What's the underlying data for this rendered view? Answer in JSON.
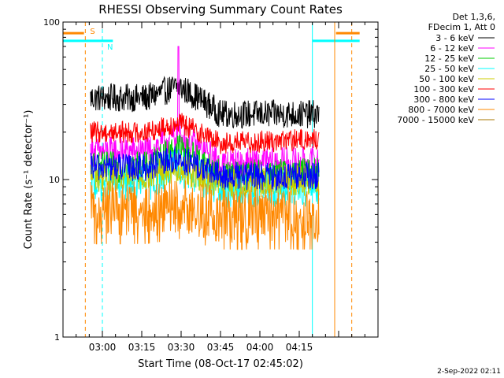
{
  "chart_data": {
    "type": "line",
    "title": "RHESSI Observing Summary Count Rates",
    "xlabel": "Start Time (08-Oct-17 02:45:02)",
    "ylabel": "Count Rate (s⁻¹ detector⁻¹)",
    "yscale": "log",
    "ylim": [
      1,
      100
    ],
    "yticks": [
      "1",
      "10",
      "100"
    ],
    "xlim_minutes": [
      0,
      120
    ],
    "xticks": [
      {
        "label": "03:00",
        "minute": 15
      },
      {
        "label": "03:15",
        "minute": 30
      },
      {
        "label": "03:30",
        "minute": 45
      },
      {
        "label": "03:45",
        "minute": 60
      },
      {
        "label": "04:00",
        "minute": 75
      },
      {
        "label": "04:15",
        "minute": 90
      }
    ],
    "legend_header": [
      "Det 1,3,6,",
      "FDecim 1, Att 0"
    ],
    "legend_placement": "top-right outside",
    "data_interval_minutes": [
      10.5,
      97.5
    ],
    "peak_minute": 44,
    "series": [
      {
        "name": "3 - 6 keV",
        "color": "#000000",
        "pre": 33,
        "peak": 39,
        "trough": 26,
        "post": 26,
        "spread": 0.045
      },
      {
        "name": "6 - 12 keV",
        "color": "#ff00ff",
        "pre": 15,
        "peak": 19,
        "trough": 12.5,
        "post": 13,
        "spread": 0.05,
        "spike": 70
      },
      {
        "name": "12 - 25 keV",
        "color": "#00cc00",
        "pre": 12,
        "peak": 16,
        "trough": 10.5,
        "post": 11,
        "spread": 0.05
      },
      {
        "name": "25 - 50 keV",
        "color": "#00ffff",
        "pre": 9.5,
        "peak": 12,
        "trough": 8.5,
        "post": 9,
        "spread": 0.06
      },
      {
        "name": "50 - 100 keV",
        "color": "#cccc00",
        "pre": 10.5,
        "peak": 12,
        "trough": 9.5,
        "post": 10,
        "spread": 0.05
      },
      {
        "name": "100 - 300 keV",
        "color": "#ff0000",
        "pre": 20,
        "peak": 23,
        "trough": 17,
        "post": 18,
        "spread": 0.035
      },
      {
        "name": "300 - 800 keV",
        "color": "#0000ff",
        "pre": 12,
        "peak": 13.5,
        "trough": 10.5,
        "post": 10.5,
        "spread": 0.045
      },
      {
        "name": "800 - 7000 keV",
        "color": "#ff8800",
        "pre": 6.5,
        "peak": 7,
        "trough": 6,
        "post": 6,
        "spread": 0.09
      },
      {
        "name": "7000 - 15000 keV",
        "color": "#aa7700",
        "pre": 0,
        "peak": 0,
        "trough": 0,
        "post": 0,
        "spread": 0
      }
    ],
    "markers": [
      {
        "label": "S",
        "color": "#ff8800",
        "style": "dashed",
        "minute": 8.5
      },
      {
        "label": "N",
        "color": "#00ffff",
        "style": "dashed",
        "minute": 15
      }
    ],
    "state_lines": [
      {
        "color": "#00ffff",
        "style": "solid",
        "minute": 95
      },
      {
        "color": "#ff8800",
        "style": "solid",
        "minute": 103.5
      },
      {
        "color": "#ff8800",
        "style": "dashed",
        "minute": 110
      }
    ],
    "state_bars": [
      {
        "color": "#ff8800",
        "from": 0,
        "to": 8,
        "level": 85
      },
      {
        "color": "#00ffff",
        "from": 0,
        "to": 19,
        "level": 76
      },
      {
        "color": "#00ffff",
        "from": 95,
        "to": 113,
        "level": 76
      },
      {
        "color": "#ff8800",
        "from": 104,
        "to": 113,
        "level": 85
      }
    ],
    "grid": false
  },
  "footer_timestamp": "2-Sep-2022 02:11"
}
